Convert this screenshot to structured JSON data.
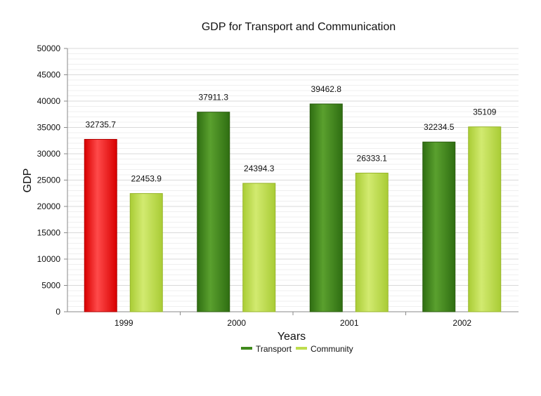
{
  "chart_data": {
    "type": "bar",
    "title": "GDP for Transport and Communication",
    "xlabel": "Years",
    "ylabel": "GDP",
    "categories": [
      "1999",
      "2000",
      "2001",
      "2002"
    ],
    "series": [
      {
        "name": "Transport",
        "values": [
          32735.7,
          37911.3,
          39462.8,
          32234.5
        ],
        "value_labels": [
          "32735.7",
          "37911.3",
          "39462.8",
          "32234.5"
        ]
      },
      {
        "name": "Community",
        "values": [
          22453.9,
          24394.3,
          26333.1,
          35109
        ],
        "value_labels": [
          "22453.9",
          "24394.3",
          "26333.1",
          "35109"
        ]
      }
    ],
    "ylim": [
      0,
      50000
    ],
    "yticks": [
      "0",
      "5000",
      "10000",
      "15000",
      "20000",
      "25000",
      "30000",
      "35000",
      "40000",
      "45000",
      "50000"
    ],
    "grid": true,
    "legend_position": "bottom-center",
    "colors": {
      "transport": "#3f8a1c",
      "community": "#bedd4e",
      "highlight": "#ff1a1a"
    }
  }
}
